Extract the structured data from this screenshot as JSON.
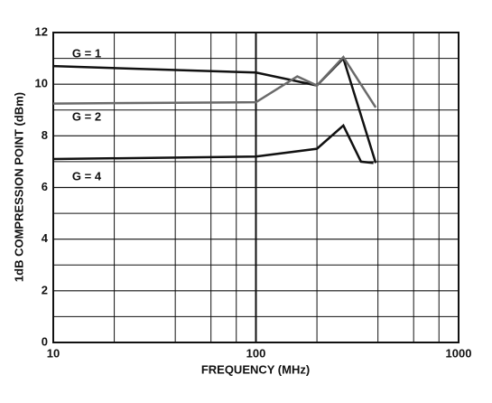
{
  "chart_data": {
    "type": "line",
    "xlabel": "FREQUENCY (MHz)",
    "ylabel": "1dB COMPRESSION POINT (dBm)",
    "xscale": "log",
    "xlim": [
      10,
      1000
    ],
    "xticks": [
      10,
      100,
      1000
    ],
    "xminor_ticks": [
      20,
      40,
      60,
      80,
      200,
      400,
      600,
      800
    ],
    "ylim": [
      0,
      12
    ],
    "yticks": [
      0,
      2,
      4,
      6,
      8,
      10,
      12
    ],
    "yminor_ticks": [
      1,
      3,
      5,
      7,
      9,
      11
    ],
    "grid": true,
    "series": [
      {
        "name": "G = 1",
        "color": "#111111",
        "x": [
          10,
          100,
          200,
          270,
          390
        ],
        "values": [
          10.7,
          10.45,
          9.95,
          11.0,
          6.95
        ]
      },
      {
        "name": "G = 2",
        "color": "#6a6a6a",
        "x": [
          10,
          100,
          160,
          200,
          270,
          390
        ],
        "values": [
          9.25,
          9.3,
          10.3,
          9.95,
          11.05,
          9.1
        ]
      },
      {
        "name": "G = 4",
        "color": "#111111",
        "x": [
          10,
          100,
          200,
          270,
          330,
          380
        ],
        "values": [
          7.1,
          7.2,
          7.5,
          8.4,
          7.0,
          6.95
        ]
      }
    ]
  }
}
